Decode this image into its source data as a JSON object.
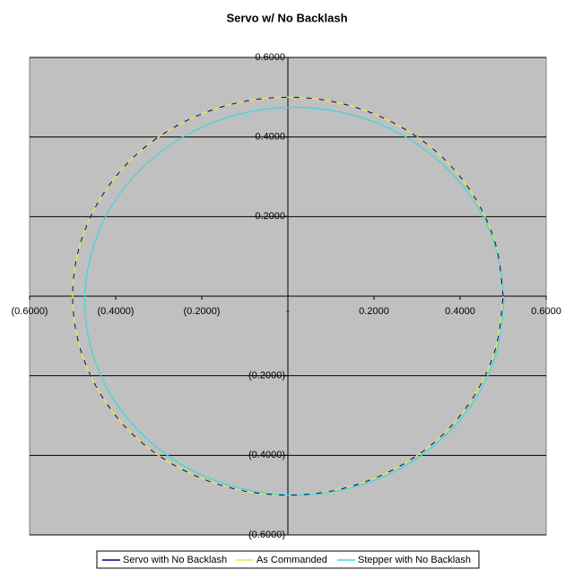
{
  "chart_data": {
    "type": "scatter-line",
    "title": "Servo w/ No Backlash",
    "xlim": [
      -0.6,
      0.6
    ],
    "ylim": [
      -0.6,
      0.6
    ],
    "xticks": [
      {
        "value": -0.6,
        "label": "(0.6000)"
      },
      {
        "value": -0.4,
        "label": "(0.4000)"
      },
      {
        "value": -0.2,
        "label": "(0.2000)"
      },
      {
        "value": 0,
        "label": "-"
      },
      {
        "value": 0.2,
        "label": "0.2000"
      },
      {
        "value": 0.4,
        "label": "0.4000"
      },
      {
        "value": 0.6,
        "label": "0.6000"
      }
    ],
    "yticks": [
      {
        "value": -0.6,
        "label": "(0.6000)"
      },
      {
        "value": -0.4,
        "label": "(0.4000)"
      },
      {
        "value": -0.2,
        "label": "(0.2000)"
      },
      {
        "value": 0,
        "label": "-"
      },
      {
        "value": 0.2,
        "label": "0.2000"
      },
      {
        "value": 0.4,
        "label": "0.4000"
      },
      {
        "value": 0.6,
        "label": "0.6000"
      }
    ],
    "grid": true,
    "legend": "bottom",
    "plot_background": "#c0c0c0",
    "series": [
      {
        "name": "Servo with No Backlash",
        "color": "#000080",
        "x": [
          0.5,
          0.483,
          0.433,
          0.354,
          0.25,
          0.129,
          0,
          -0.129,
          -0.25,
          -0.354,
          -0.433,
          -0.483,
          -0.5,
          -0.483,
          -0.433,
          -0.354,
          -0.25,
          -0.129,
          0,
          0.129,
          0.25,
          0.354,
          0.433,
          0.483,
          0.5
        ],
        "values": [
          0,
          0.129,
          0.25,
          0.354,
          0.433,
          0.483,
          0.5,
          0.483,
          0.433,
          0.354,
          0.25,
          0.129,
          0,
          -0.129,
          -0.25,
          -0.354,
          -0.433,
          -0.483,
          -0.5,
          -0.483,
          -0.433,
          -0.354,
          -0.25,
          -0.129,
          0
        ]
      },
      {
        "name": "As Commanded",
        "color": "#e8e84a",
        "x": [
          0.5,
          0.483,
          0.433,
          0.354,
          0.25,
          0.129,
          0,
          -0.129,
          -0.25,
          -0.354,
          -0.433,
          -0.483,
          -0.5,
          -0.483,
          -0.433,
          -0.354,
          -0.25,
          -0.129,
          0,
          0.129,
          0.25,
          0.354,
          0.433,
          0.483,
          0.5
        ],
        "values": [
          0,
          0.129,
          0.25,
          0.354,
          0.433,
          0.483,
          0.5,
          0.483,
          0.433,
          0.354,
          0.25,
          0.129,
          0,
          -0.129,
          -0.25,
          -0.354,
          -0.433,
          -0.483,
          -0.5,
          -0.483,
          -0.433,
          -0.354,
          -0.25,
          -0.129,
          0
        ]
      },
      {
        "name": "Stepper with No Backlash",
        "color": "#40d8d8",
        "x": [
          0.502,
          0.485,
          0.437,
          0.359,
          0.259,
          0.141,
          0.015,
          -0.111,
          -0.229,
          -0.329,
          -0.407,
          -0.455,
          -0.472,
          -0.455,
          -0.407,
          -0.329,
          -0.229,
          -0.111,
          0.015,
          0.141,
          0.259,
          0.359,
          0.437,
          0.485,
          0.502
        ],
        "values": [
          -0.013,
          0.113,
          0.231,
          0.332,
          0.409,
          0.458,
          0.475,
          0.458,
          0.409,
          0.332,
          0.231,
          0.113,
          -0.013,
          -0.139,
          -0.256,
          -0.357,
          -0.434,
          -0.483,
          -0.5,
          -0.483,
          -0.434,
          -0.357,
          -0.256,
          -0.139,
          -0.013
        ]
      }
    ]
  }
}
